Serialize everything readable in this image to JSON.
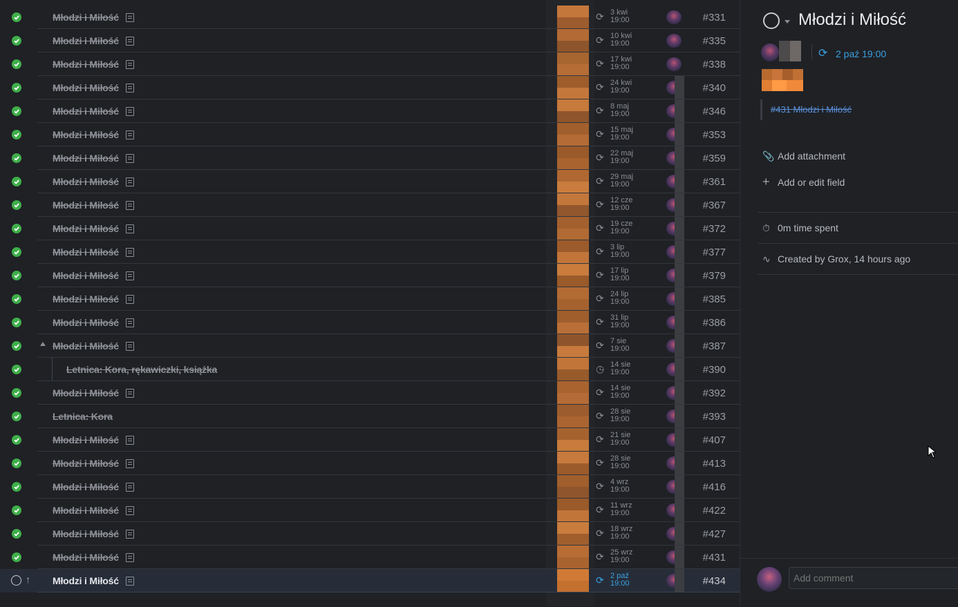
{
  "rows": [
    {
      "title": "Młodzi i Miłość",
      "date1": "3 kwi",
      "date2": "19:00",
      "num": "#331",
      "done": true,
      "note": true,
      "icon": "repeat",
      "a": "#c4773b",
      "b": "#9d5c2e"
    },
    {
      "title": "Młodzi i Miłość",
      "date1": "10 kwi",
      "date2": "19:00",
      "num": "#335",
      "done": true,
      "note": true,
      "icon": "repeat",
      "a": "#b46a34",
      "b": "#8e552c"
    },
    {
      "title": "Młodzi i Miłość",
      "date1": "17 kwi",
      "date2": "19:00",
      "num": "#338",
      "done": true,
      "note": true,
      "icon": "repeat",
      "a": "#a7652f",
      "b": "#b76d36"
    },
    {
      "title": "Młodzi i Miłość",
      "date1": "24 kwi",
      "date2": "19:00",
      "num": "#340",
      "done": true,
      "note": true,
      "icon": "repeat",
      "a": "#9e5d2b",
      "b": "#c4773b"
    },
    {
      "title": "Młodzi i Miłość",
      "date1": "8 maj",
      "date2": "19:00",
      "num": "#346",
      "done": true,
      "note": true,
      "icon": "repeat",
      "a": "#c67a3c",
      "b": "#8f552c"
    },
    {
      "title": "Młodzi i Miłość",
      "date1": "15 maj",
      "date2": "19:00",
      "num": "#353",
      "done": true,
      "note": true,
      "icon": "repeat",
      "a": "#a15f2d",
      "b": "#b56b35"
    },
    {
      "title": "Młodzi i Miłość",
      "date1": "22 maj",
      "date2": "19:00",
      "num": "#359",
      "done": true,
      "note": true,
      "icon": "repeat",
      "a": "#9a5a2a",
      "b": "#a9632f"
    },
    {
      "title": "Młodzi i Miłość",
      "date1": "29 maj",
      "date2": "19:00",
      "num": "#361",
      "done": true,
      "note": true,
      "icon": "repeat",
      "a": "#b06832",
      "b": "#c97c3d"
    },
    {
      "title": "Młodzi i Miłość",
      "date1": "12 cze",
      "date2": "19:00",
      "num": "#367",
      "done": true,
      "note": true,
      "icon": "repeat",
      "a": "#c4773b",
      "b": "#92572d"
    },
    {
      "title": "Młodzi i Miłość",
      "date1": "19 cze",
      "date2": "19:00",
      "num": "#372",
      "done": true,
      "note": true,
      "icon": "repeat",
      "a": "#a3602e",
      "b": "#b16a33"
    },
    {
      "title": "Młodzi i Miłość",
      "date1": "3 lip",
      "date2": "19:00",
      "num": "#377",
      "done": true,
      "note": true,
      "icon": "repeat",
      "a": "#9c5b2b",
      "b": "#c27539"
    },
    {
      "title": "Młodzi i Miłość",
      "date1": "17 lip",
      "date2": "19:00",
      "num": "#379",
      "done": true,
      "note": true,
      "icon": "repeat",
      "a": "#c97c3d",
      "b": "#9a5a2a"
    },
    {
      "title": "Młodzi i Miłość",
      "date1": "24 lip",
      "date2": "19:00",
      "num": "#385",
      "done": true,
      "note": true,
      "icon": "repeat",
      "a": "#b36b34",
      "b": "#a5622f"
    },
    {
      "title": "Młodzi i Miłość",
      "date1": "31 lip",
      "date2": "19:00",
      "num": "#386",
      "done": true,
      "note": true,
      "icon": "repeat",
      "a": "#9f5e2c",
      "b": "#b96f37"
    },
    {
      "title": "Młodzi i Miłość",
      "date1": "7 sie",
      "date2": "19:00",
      "num": "#387",
      "done": true,
      "note": true,
      "icon": "repeat",
      "caret": true,
      "a": "#8e552c",
      "b": "#c77a3c"
    },
    {
      "title": "Letnica: Kora, rękawiczki, książka",
      "date1": "14 sie",
      "date2": "19:00",
      "num": "#390",
      "done": true,
      "note": false,
      "icon": "clock",
      "child": true,
      "a": "#c27539",
      "b": "#975a2b"
    },
    {
      "title": "Młodzi i Miłość",
      "date1": "14 sie",
      "date2": "19:00",
      "num": "#392",
      "done": true,
      "note": true,
      "icon": "repeat",
      "a": "#a9632f",
      "b": "#b56b35"
    },
    {
      "title": "Letnica: Kora",
      "date1": "28 sie",
      "date2": "19:00",
      "num": "#393",
      "done": true,
      "note": false,
      "icon": "repeat",
      "a": "#9d5c2e",
      "b": "#ab6431"
    },
    {
      "title": "Młodzi i Miłość",
      "date1": "21 sie",
      "date2": "19:00",
      "num": "#407",
      "done": true,
      "note": true,
      "icon": "repeat",
      "a": "#a5622f",
      "b": "#c87b3c"
    },
    {
      "title": "Młodzi i Miłość",
      "date1": "28 sie",
      "date2": "19:00",
      "num": "#413",
      "done": true,
      "note": true,
      "icon": "repeat",
      "a": "#c77a3c",
      "b": "#9c5b2b"
    },
    {
      "title": "Młodzi i Miłość",
      "date1": "4 wrz",
      "date2": "19:00",
      "num": "#416",
      "done": true,
      "note": true,
      "icon": "repeat",
      "a": "#a15f2d",
      "b": "#8f552c"
    },
    {
      "title": "Młodzi i Miłość",
      "date1": "11 wrz",
      "date2": "19:00",
      "num": "#422",
      "done": true,
      "note": true,
      "icon": "repeat",
      "a": "#9a5a2a",
      "b": "#c27539"
    },
    {
      "title": "Młodzi i Miłość",
      "date1": "18 wrz",
      "date2": "19:00",
      "num": "#427",
      "done": true,
      "note": true,
      "icon": "repeat",
      "a": "#c97c3d",
      "b": "#a05e2d"
    },
    {
      "title": "Młodzi i Miłość",
      "date1": "25 wrz",
      "date2": "19:00",
      "num": "#431",
      "done": true,
      "note": true,
      "icon": "repeat",
      "a": "#b86d35",
      "b": "#a9632f"
    },
    {
      "title": "Młodzi i Miłość",
      "date1": "2 paź",
      "date2": "19:00",
      "num": "#434",
      "done": false,
      "note": true,
      "icon": "repeat",
      "selected": true,
      "a": "#d07a36",
      "b": "#c4702f"
    }
  ],
  "panel": {
    "title": "Młodzi i Miłość",
    "schedule": "2 paź  19:00",
    "linked": "#431 Młodzi i Miłość",
    "add_attachment": "Add attachment",
    "add_field": "Add or edit field",
    "time_spent": "0m time spent",
    "created": "Created by Grox, 14 hours ago",
    "comment_placeholder": "Add comment"
  },
  "colors": {
    "done": "#3fae4a",
    "accent": "#3aa0e0",
    "link": "#5a8fd8"
  }
}
